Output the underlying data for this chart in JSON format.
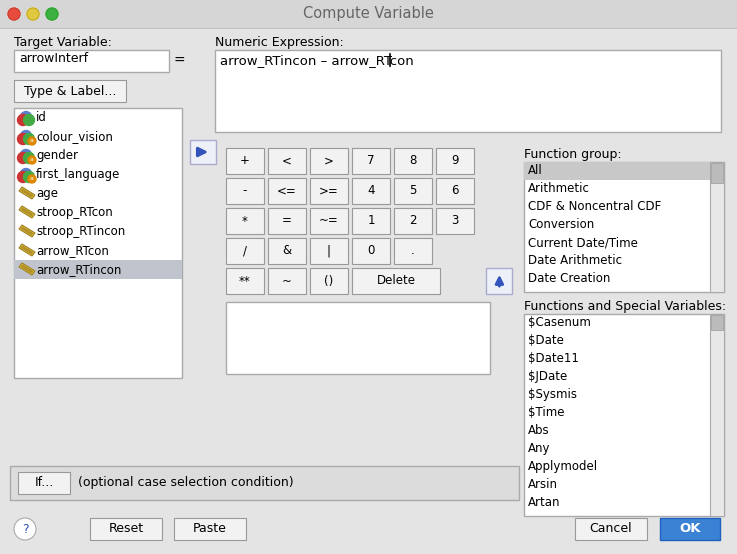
{
  "title": "Compute Variable",
  "bg_color": "#e4e4e4",
  "window_title_color": "#666666",
  "target_variable_label": "Target Variable:",
  "target_variable_value": "arrowInterf",
  "numeric_expression_label": "Numeric Expression:",
  "numeric_expression_value": "arrow_RTincon – arrow_RTcon",
  "type_label_btn": "Type & Label...",
  "variable_list": [
    "id",
    "colour_vision",
    "gender",
    "first_language",
    "age",
    "stroop_RTcon",
    "stroop_RTincon",
    "arrow_RTcon",
    "arrow_RTincon"
  ],
  "selected_variable": "arrow_RTincon",
  "var_nominal": [
    true,
    true,
    true,
    true,
    false,
    false,
    false,
    false,
    false
  ],
  "calc_buttons_rows": [
    [
      "+",
      "<",
      ">",
      "7",
      "8",
      "9"
    ],
    [
      "-",
      "<=",
      ">=",
      "4",
      "5",
      "6"
    ],
    [
      "*",
      "=",
      "~=",
      "1",
      "2",
      "3"
    ],
    [
      "/",
      "&",
      "|",
      "0",
      ".",
      ""
    ],
    [
      "**",
      "~",
      "()",
      "Delete",
      "",
      ""
    ]
  ],
  "function_group_label": "Function group:",
  "function_group_items": [
    "All",
    "Arithmetic",
    "CDF & Noncentral CDF",
    "Conversion",
    "Current Date/Time",
    "Date Arithmetic",
    "Date Creation"
  ],
  "function_group_selected": "All",
  "functions_special_label": "Functions and Special Variables:",
  "functions_special_items": [
    "$Casenum",
    "$Date",
    "$Date11",
    "$JDate",
    "$Sysmis",
    "$Time",
    "Abs",
    "Any",
    "Applymodel",
    "Arsin",
    "Artan"
  ],
  "if_btn": "If...",
  "if_label": "(optional case selection condition)",
  "ok_btn_color": "#3b82d4",
  "ok_text_color": "#ffffff",
  "input_bg": "#ffffff",
  "selected_bg": "#c0c4cc",
  "list_border": "#aaaaaa",
  "btn_face": "#f2f2f2",
  "btn_edge": "#999999",
  "titlebar_bg": "#d6d6d6",
  "titlebar_border": "#b0b0b0",
  "traffic_red": "#e74c3c",
  "traffic_yellow": "#e0c840",
  "traffic_green": "#3cb040"
}
